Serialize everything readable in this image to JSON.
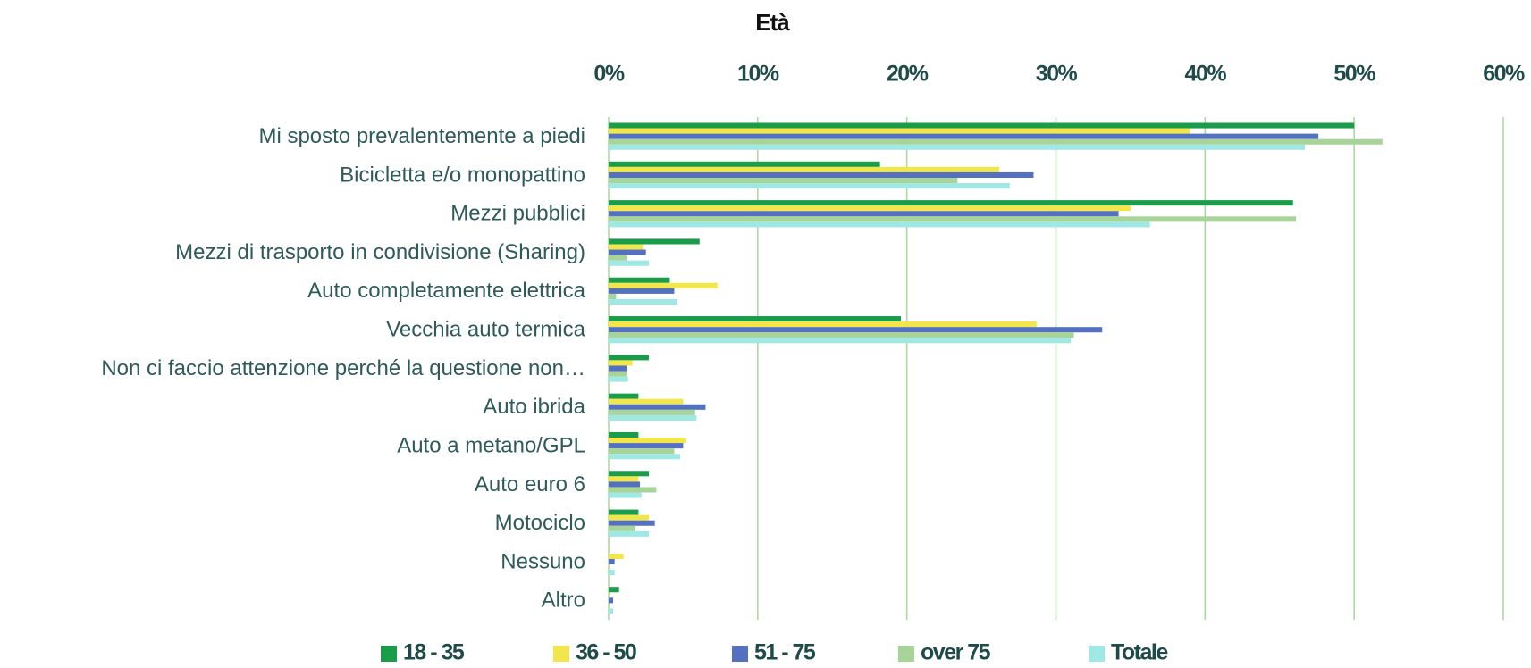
{
  "chart_data": {
    "type": "hbar",
    "title": "Età",
    "categories": [
      "Mi sposto prevalentemente a piedi",
      "Bicicletta e/o monopattino",
      "Mezzi pubblici",
      "Mezzi di trasporto in condivisione (Sharing)",
      "Auto completamente elettrica",
      "Vecchia auto termica",
      "Non ci faccio attenzione perché la questione non…",
      "Auto ibrida",
      "Auto a metano/GPL",
      "Auto euro 6",
      "Motociclo",
      "Nessuno",
      "Altro"
    ],
    "series": [
      {
        "name": "18 - 35",
        "color": "#1a9c4a",
        "values": [
          50.0,
          18.2,
          45.9,
          6.1,
          4.1,
          19.6,
          2.7,
          2.0,
          2.0,
          2.7,
          2.0,
          0,
          0.7
        ]
      },
      {
        "name": "36 - 50",
        "color": "#f2e64a",
        "values": [
          39.0,
          26.2,
          35.0,
          2.3,
          7.3,
          28.7,
          1.6,
          5.0,
          5.2,
          2.0,
          2.7,
          1.0,
          0
        ]
      },
      {
        "name": "51 - 75",
        "color": "#5470c0",
        "values": [
          47.6,
          28.5,
          34.2,
          2.5,
          4.4,
          33.1,
          1.2,
          6.5,
          5.0,
          2.1,
          3.1,
          0.4,
          0.3
        ]
      },
      {
        "name": "over 75",
        "color": "#a8d49a",
        "values": [
          51.9,
          23.4,
          46.1,
          1.2,
          0.5,
          31.2,
          1.2,
          5.8,
          4.4,
          3.2,
          1.8,
          0,
          0
        ]
      },
      {
        "name": "Totale",
        "color": "#a0e8e4",
        "values": [
          46.7,
          26.9,
          36.3,
          2.7,
          4.6,
          31.0,
          1.3,
          5.9,
          4.8,
          2.2,
          2.7,
          0.4,
          0.3
        ]
      }
    ],
    "xlim": [
      0,
      60
    ],
    "xticks": [
      {
        "value": 0,
        "label": "0%"
      },
      {
        "value": 10,
        "label": "10%"
      },
      {
        "value": 20,
        "label": "20%"
      },
      {
        "value": 30,
        "label": "30%"
      },
      {
        "value": 40,
        "label": "40%"
      },
      {
        "value": 50,
        "label": "50%"
      },
      {
        "value": 60,
        "label": "60%"
      }
    ],
    "grid": true,
    "legend": "bottom"
  }
}
